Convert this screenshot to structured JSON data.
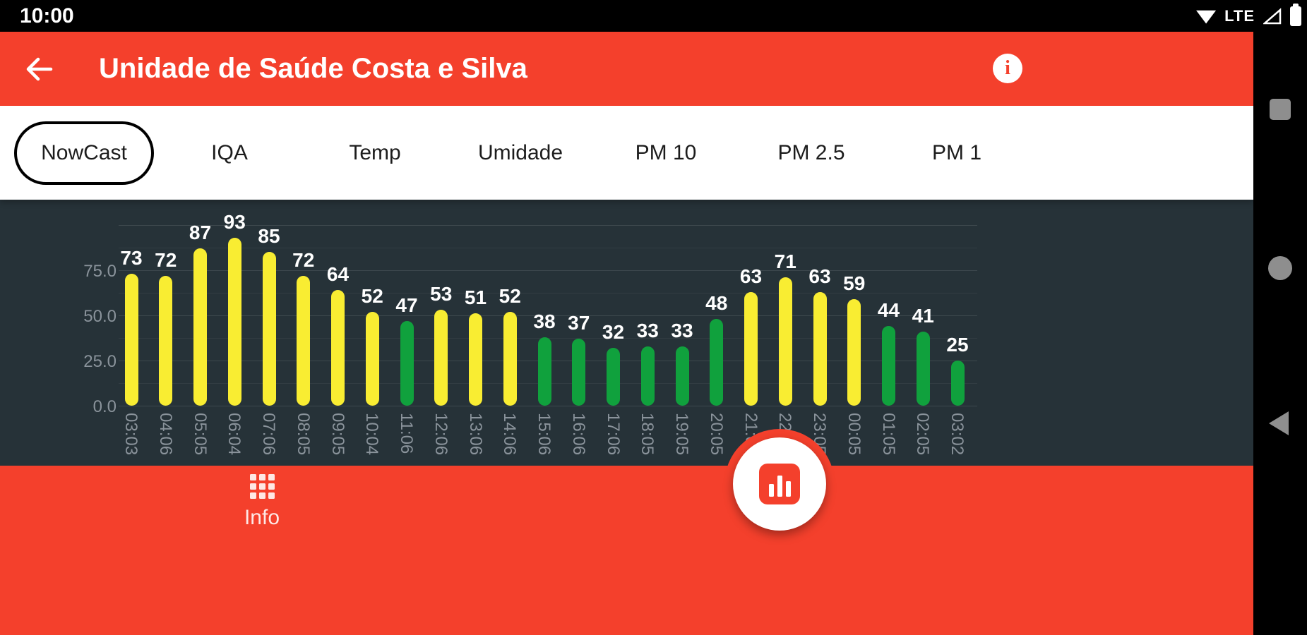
{
  "colors": {
    "primary_red": "#F4402C",
    "chart_background": "#263238",
    "bar_yellow": "#F9ED32",
    "bar_green": "#10A13D",
    "tick_label_gray": "#8A939B",
    "nav_icon_gray": "#8E8E8E"
  },
  "icons": {
    "status": [
      "wifi-icon",
      "signal-icon",
      "battery-icon"
    ],
    "app_bar": [
      "back-arrow-icon",
      "info-icon"
    ],
    "bottom_bar": [
      "grid-icon"
    ],
    "fab": "bar-chart-icon",
    "nav_strip": [
      "recents-square-icon",
      "home-circle-icon",
      "back-triangle-icon"
    ]
  },
  "status_bar": {
    "time": "10:00",
    "network": "LTE"
  },
  "app_bar": {
    "title": "Unidade de Saúde Costa e Silva",
    "info_glyph": "i"
  },
  "tab_bar": {
    "tabs": [
      {
        "label": "NowCast",
        "selected": true
      },
      {
        "label": "IQA",
        "selected": false
      },
      {
        "label": "Temp",
        "selected": false
      },
      {
        "label": "Umidade",
        "selected": false
      },
      {
        "label": "PM 10",
        "selected": false
      },
      {
        "label": "PM 2.5",
        "selected": false
      },
      {
        "label": "PM 1",
        "selected": false
      }
    ]
  },
  "chart_data": {
    "type": "bar",
    "title": "",
    "xlabel": "",
    "ylabel": "",
    "categories": [
      "03:03",
      "04:06",
      "05:05",
      "06:04",
      "07:06",
      "08:05",
      "09:05",
      "10:04",
      "11:06",
      "12:06",
      "13:06",
      "14:06",
      "15:06",
      "16:06",
      "17:06",
      "18:05",
      "19:05",
      "20:05",
      "21:05",
      "22:05",
      "23:05",
      "00:05",
      "01:05",
      "02:05",
      "03:02"
    ],
    "values": [
      73,
      72,
      87,
      93,
      85,
      72,
      64,
      52,
      47,
      53,
      51,
      52,
      38,
      37,
      32,
      33,
      33,
      48,
      63,
      71,
      63,
      59,
      44,
      41,
      25
    ],
    "yticks": [
      {
        "value": 0,
        "label": "0.0"
      },
      {
        "value": 25,
        "label": "25.0"
      },
      {
        "value": 50,
        "label": "50.0"
      },
      {
        "value": 75,
        "label": "75.0"
      }
    ],
    "ylim": [
      0,
      100
    ],
    "grid": true,
    "legend": "none",
    "color_rule": {
      "threshold": 50,
      "above": "#F9ED32",
      "at_or_below": "#10A13D"
    }
  },
  "bottom_bar": {
    "info_label": "Info"
  },
  "nav_bar": {
    "buttons": [
      "recents",
      "home",
      "back"
    ]
  }
}
